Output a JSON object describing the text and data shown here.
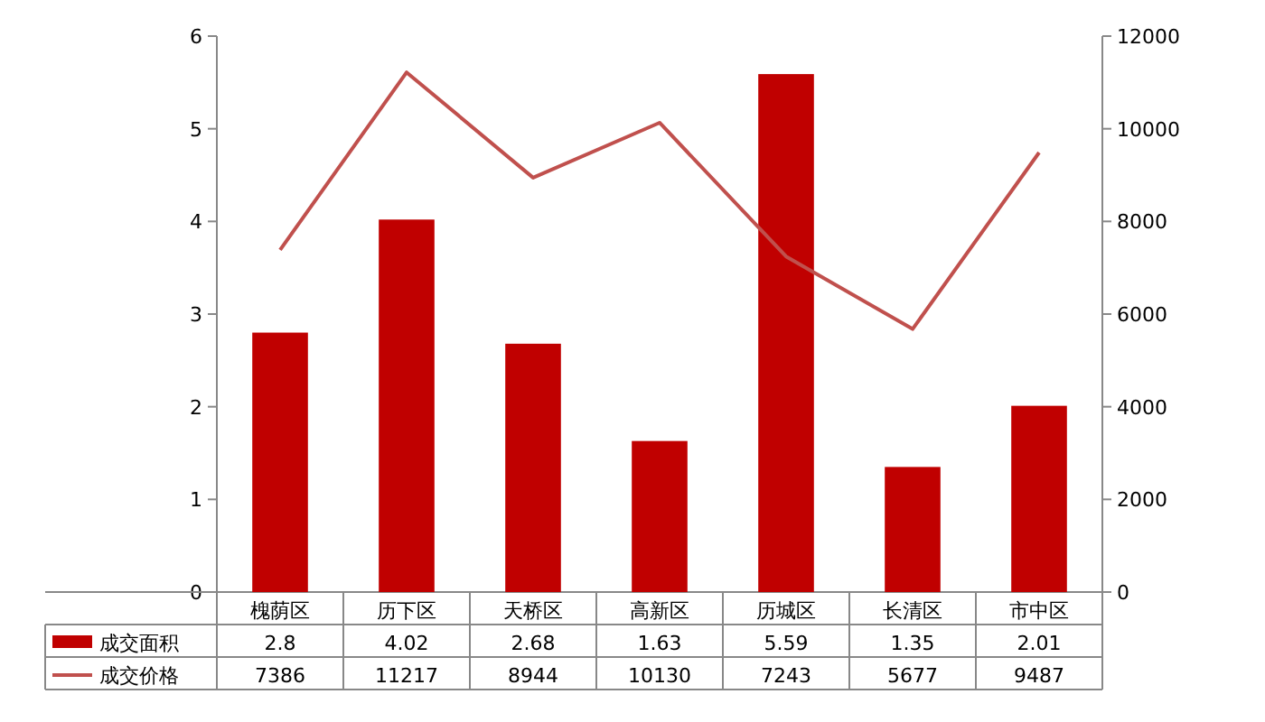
{
  "chart_data": {
    "type": "bar",
    "categories": [
      "槐荫区",
      "历下区",
      "天桥区",
      "高新区",
      "历城区",
      "长清区",
      "市中区"
    ],
    "series": [
      {
        "name": "成交面积",
        "color": "#c00000",
        "values": [
          2.8,
          4.02,
          2.68,
          1.63,
          5.59,
          1.35,
          2.01
        ]
      },
      {
        "name": "成交价格",
        "type": "line",
        "axis": "y2",
        "color": "#c0504d",
        "values": [
          7386,
          11217,
          8944,
          10130,
          7243,
          5677,
          9487
        ]
      }
    ],
    "ylim": [
      0,
      6
    ],
    "yticks": [
      0,
      1,
      2,
      3,
      4,
      5,
      6
    ],
    "y2lim": [
      0,
      12000
    ],
    "y2ticks": [
      0,
      2000,
      4000,
      6000,
      8000,
      10000,
      12000
    ],
    "data_labels": true,
    "legend": "bottom"
  }
}
